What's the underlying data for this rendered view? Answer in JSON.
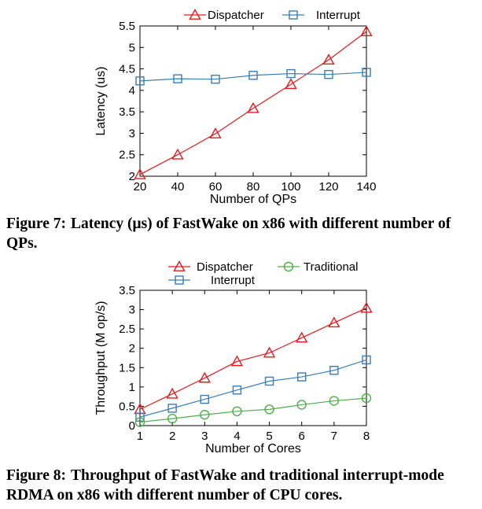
{
  "figures": [
    {
      "caption_label": "Figure 7:",
      "caption_text": "Latency (μs) of FastWake on x86 with different number of QPs."
    },
    {
      "caption_label": "Figure 8:",
      "caption_text": "Throughput of FastWake and traditional interrupt-mode RDMA on x86 with different number of CPU cores."
    }
  ],
  "chart_data": [
    {
      "type": "line",
      "xlabel": "Number of QPs",
      "ylabel": "Latency (us)",
      "x": [
        20,
        40,
        60,
        80,
        100,
        120,
        140
      ],
      "xlim": [
        20,
        140
      ],
      "ylim": [
        2,
        5.5
      ],
      "xticks": [
        "20",
        "40",
        "60",
        "80",
        "100",
        "120",
        "140"
      ],
      "yticks": [
        "2",
        "2.5",
        "3",
        "3.5",
        "4",
        "4.5",
        "5",
        "5.5"
      ],
      "grid": false,
      "legend_position": "top",
      "series": [
        {
          "name": "Dispatcher",
          "marker": "triangle",
          "color": "#e41a1c",
          "values": [
            2.04,
            2.5,
            2.99,
            3.58,
            4.14,
            4.71,
            5.37
          ]
        },
        {
          "name": "Interrupt",
          "marker": "square",
          "color": "#377eb8",
          "values": [
            4.22,
            4.27,
            4.26,
            4.35,
            4.39,
            4.37,
            4.42
          ]
        }
      ]
    },
    {
      "type": "line",
      "xlabel": "Number of Cores",
      "ylabel": "Throughput (M op/s)",
      "x": [
        1,
        2,
        3,
        4,
        5,
        6,
        7,
        8
      ],
      "xlim": [
        1,
        8
      ],
      "ylim": [
        0,
        3.5
      ],
      "xticks": [
        "1",
        "2",
        "3",
        "4",
        "5",
        "6",
        "7",
        "8"
      ],
      "yticks": [
        "0",
        "0.5",
        "1",
        "1.5",
        "2",
        "2.5",
        "3",
        "3.5"
      ],
      "grid": false,
      "legend_position": "top",
      "series": [
        {
          "name": "Dispatcher",
          "marker": "triangle",
          "color": "#e41a1c",
          "values": [
            0.42,
            0.82,
            1.23,
            1.66,
            1.88,
            2.27,
            2.66,
            3.04
          ]
        },
        {
          "name": "Interrupt",
          "marker": "square",
          "color": "#377eb8",
          "values": [
            0.22,
            0.45,
            0.68,
            0.92,
            1.15,
            1.26,
            1.43,
            1.7
          ]
        },
        {
          "name": "Traditional",
          "marker": "circle",
          "color": "#4daf4a",
          "values": [
            0.09,
            0.18,
            0.28,
            0.37,
            0.42,
            0.54,
            0.64,
            0.71
          ]
        }
      ]
    }
  ]
}
